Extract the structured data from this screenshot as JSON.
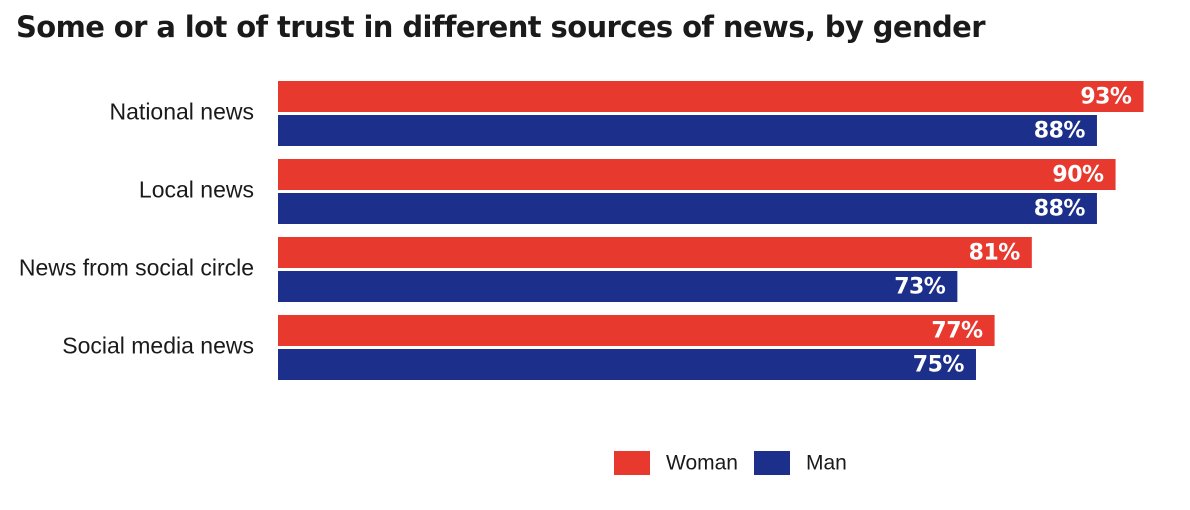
{
  "chart_data": {
    "type": "bar",
    "orientation": "horizontal",
    "title": "Some or a lot of trust in different sources of news, by gender",
    "categories": [
      "National news",
      "Local news",
      "News from social circle",
      "Social media news"
    ],
    "series": [
      {
        "name": "Woman",
        "color": "#e8392f",
        "values": [
          93,
          90,
          81,
          77
        ],
        "labels": [
          "93%",
          "90%",
          "81%",
          "77%"
        ]
      },
      {
        "name": "Man",
        "color": "#1c2f8a",
        "values": [
          88,
          88,
          73,
          75
        ],
        "labels": [
          "88%",
          "88%",
          "73%",
          "75%"
        ]
      }
    ],
    "xlim": [
      0,
      100
    ],
    "value_suffix": "%",
    "grid": false,
    "legend_position": "bottom"
  }
}
